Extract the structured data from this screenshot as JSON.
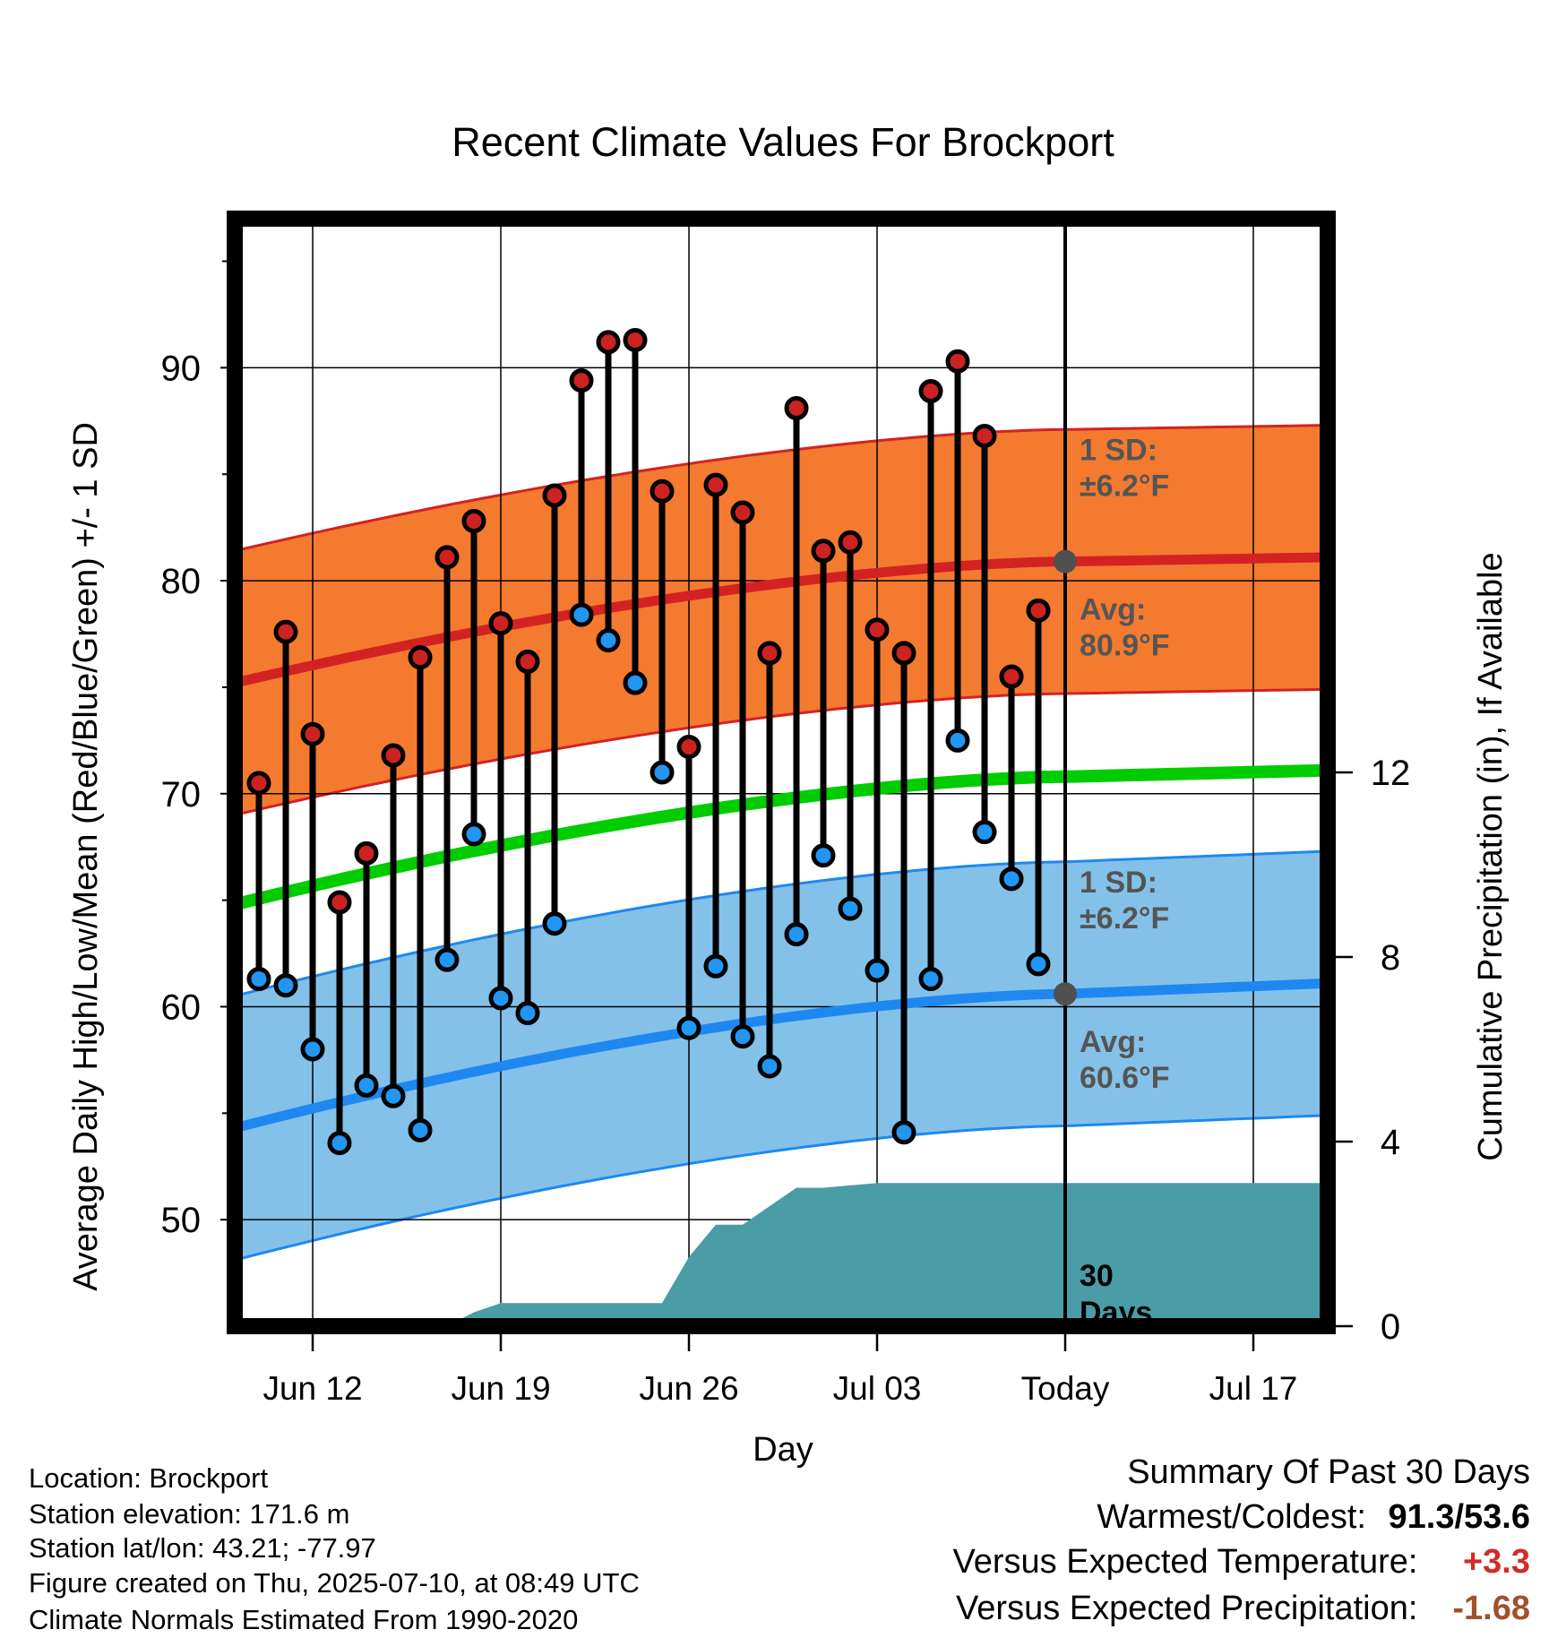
{
  "chart_data": {
    "type": "line",
    "title": "Recent Climate Values For Brockport",
    "xlabel": "Day",
    "ylabel": "Average Daily High/Low/Mean (Red/Blue/Green) +/- 1 SD",
    "y2label": "Cumulative Precipitation (in), If Available",
    "ylim": [
      45,
      97
    ],
    "y2lim": [
      0,
      24
    ],
    "x_ticks": [
      "Jun 12",
      "Jun 19",
      "Jun 26",
      "Jul 03",
      "Today",
      "Jul 17"
    ],
    "y_ticks": [
      50,
      60,
      70,
      80,
      90
    ],
    "y2_ticks": [
      0,
      4,
      8,
      12
    ],
    "grid": true,
    "dates": [
      "Jun 10",
      "Jun 11",
      "Jun 12",
      "Jun 13",
      "Jun 14",
      "Jun 15",
      "Jun 16",
      "Jun 17",
      "Jun 18",
      "Jun 19",
      "Jun 20",
      "Jun 21",
      "Jun 22",
      "Jun 23",
      "Jun 24",
      "Jun 25",
      "Jun 26",
      "Jun 27",
      "Jun 28",
      "Jun 29",
      "Jun 30",
      "Jul 01",
      "Jul 02",
      "Jul 03",
      "Jul 04",
      "Jul 05",
      "Jul 06",
      "Jul 07",
      "Jul 08",
      "Jul 09"
    ],
    "series": [
      {
        "name": "High",
        "color": "#cc2222",
        "values": [
          70.5,
          77.6,
          72.8,
          64.9,
          67.2,
          71.8,
          76.4,
          81.1,
          82.8,
          78.0,
          76.2,
          84.0,
          89.4,
          91.2,
          91.3,
          84.2,
          72.2,
          84.5,
          83.2,
          76.6,
          88.1,
          81.4,
          81.8,
          77.7,
          76.6,
          88.9,
          90.3,
          86.8,
          75.5,
          78.6
        ]
      },
      {
        "name": "Low",
        "color": "#2196f3",
        "values": [
          61.3,
          61.0,
          58.0,
          53.6,
          56.3,
          55.8,
          54.2,
          62.2,
          68.1,
          60.4,
          59.7,
          63.9,
          78.4,
          77.2,
          75.2,
          71.0,
          59.0,
          61.9,
          58.6,
          57.2,
          63.4,
          67.1,
          64.6,
          61.7,
          54.1,
          61.3,
          72.5,
          68.2,
          66.0,
          62.0
        ]
      }
    ],
    "normals": {
      "high_avg": {
        "start": 75.2,
        "today": 80.9,
        "end": 81.1
      },
      "low_avg": {
        "start": 54.3,
        "today": 60.6,
        "end": 61.1
      },
      "mean_avg": {
        "start": 64.8,
        "today": 70.8,
        "end": 71.1
      },
      "sd": 6.2
    },
    "normal_colors": {
      "high_band": "#f47a30",
      "high_line": "#d32222",
      "low_band": "#84c1e8",
      "low_line": "#1e88f0",
      "mean_line": "#00cc00",
      "precip": "#4a9ca6"
    },
    "precip_cumulative": {
      "dates": [
        "Jun 10",
        "Jun 17",
        "Jun 18",
        "Jun 19",
        "Jun 25",
        "Jun 26",
        "Jun 27",
        "Jun 28",
        "Jun 30",
        "Jul 01",
        "Jul 03",
        "Jul 20"
      ],
      "values": [
        0,
        0,
        0.3,
        0.5,
        0.5,
        1.5,
        2.2,
        2.2,
        3.0,
        3.0,
        3.1,
        3.1
      ]
    },
    "annotations": {
      "high_sd_label": "1 SD:",
      "high_sd_value": "±6.2°F",
      "high_avg_label": "Avg:",
      "high_avg_value": "80.9°F",
      "low_sd_label": "1 SD:",
      "low_sd_value": "±6.2°F",
      "low_avg_label": "Avg:",
      "low_avg_value": "60.6°F",
      "period_label_1": "30",
      "period_label_2": "Days"
    }
  },
  "meta": {
    "location": "Location: Brockport",
    "elevation": "Station elevation: 171.6 m",
    "latlon": "Station lat/lon: 43.21; -77.97",
    "created": "Figure created on Thu, 2025-07-10, at 08:49 UTC",
    "normals": "Climate Normals Estimated From 1990-2020"
  },
  "summary": {
    "title": "Summary Of Past 30 Days",
    "warm_cold_label": "Warmest/Coldest:",
    "warm_cold_value": "91.3/53.6",
    "temp_label": "Versus Expected Temperature:",
    "temp_value": "+3.3",
    "temp_color": "#d42a2a",
    "precip_label": "Versus Expected Precipitation:",
    "precip_value": "-1.68",
    "precip_color": "#a0522d"
  }
}
